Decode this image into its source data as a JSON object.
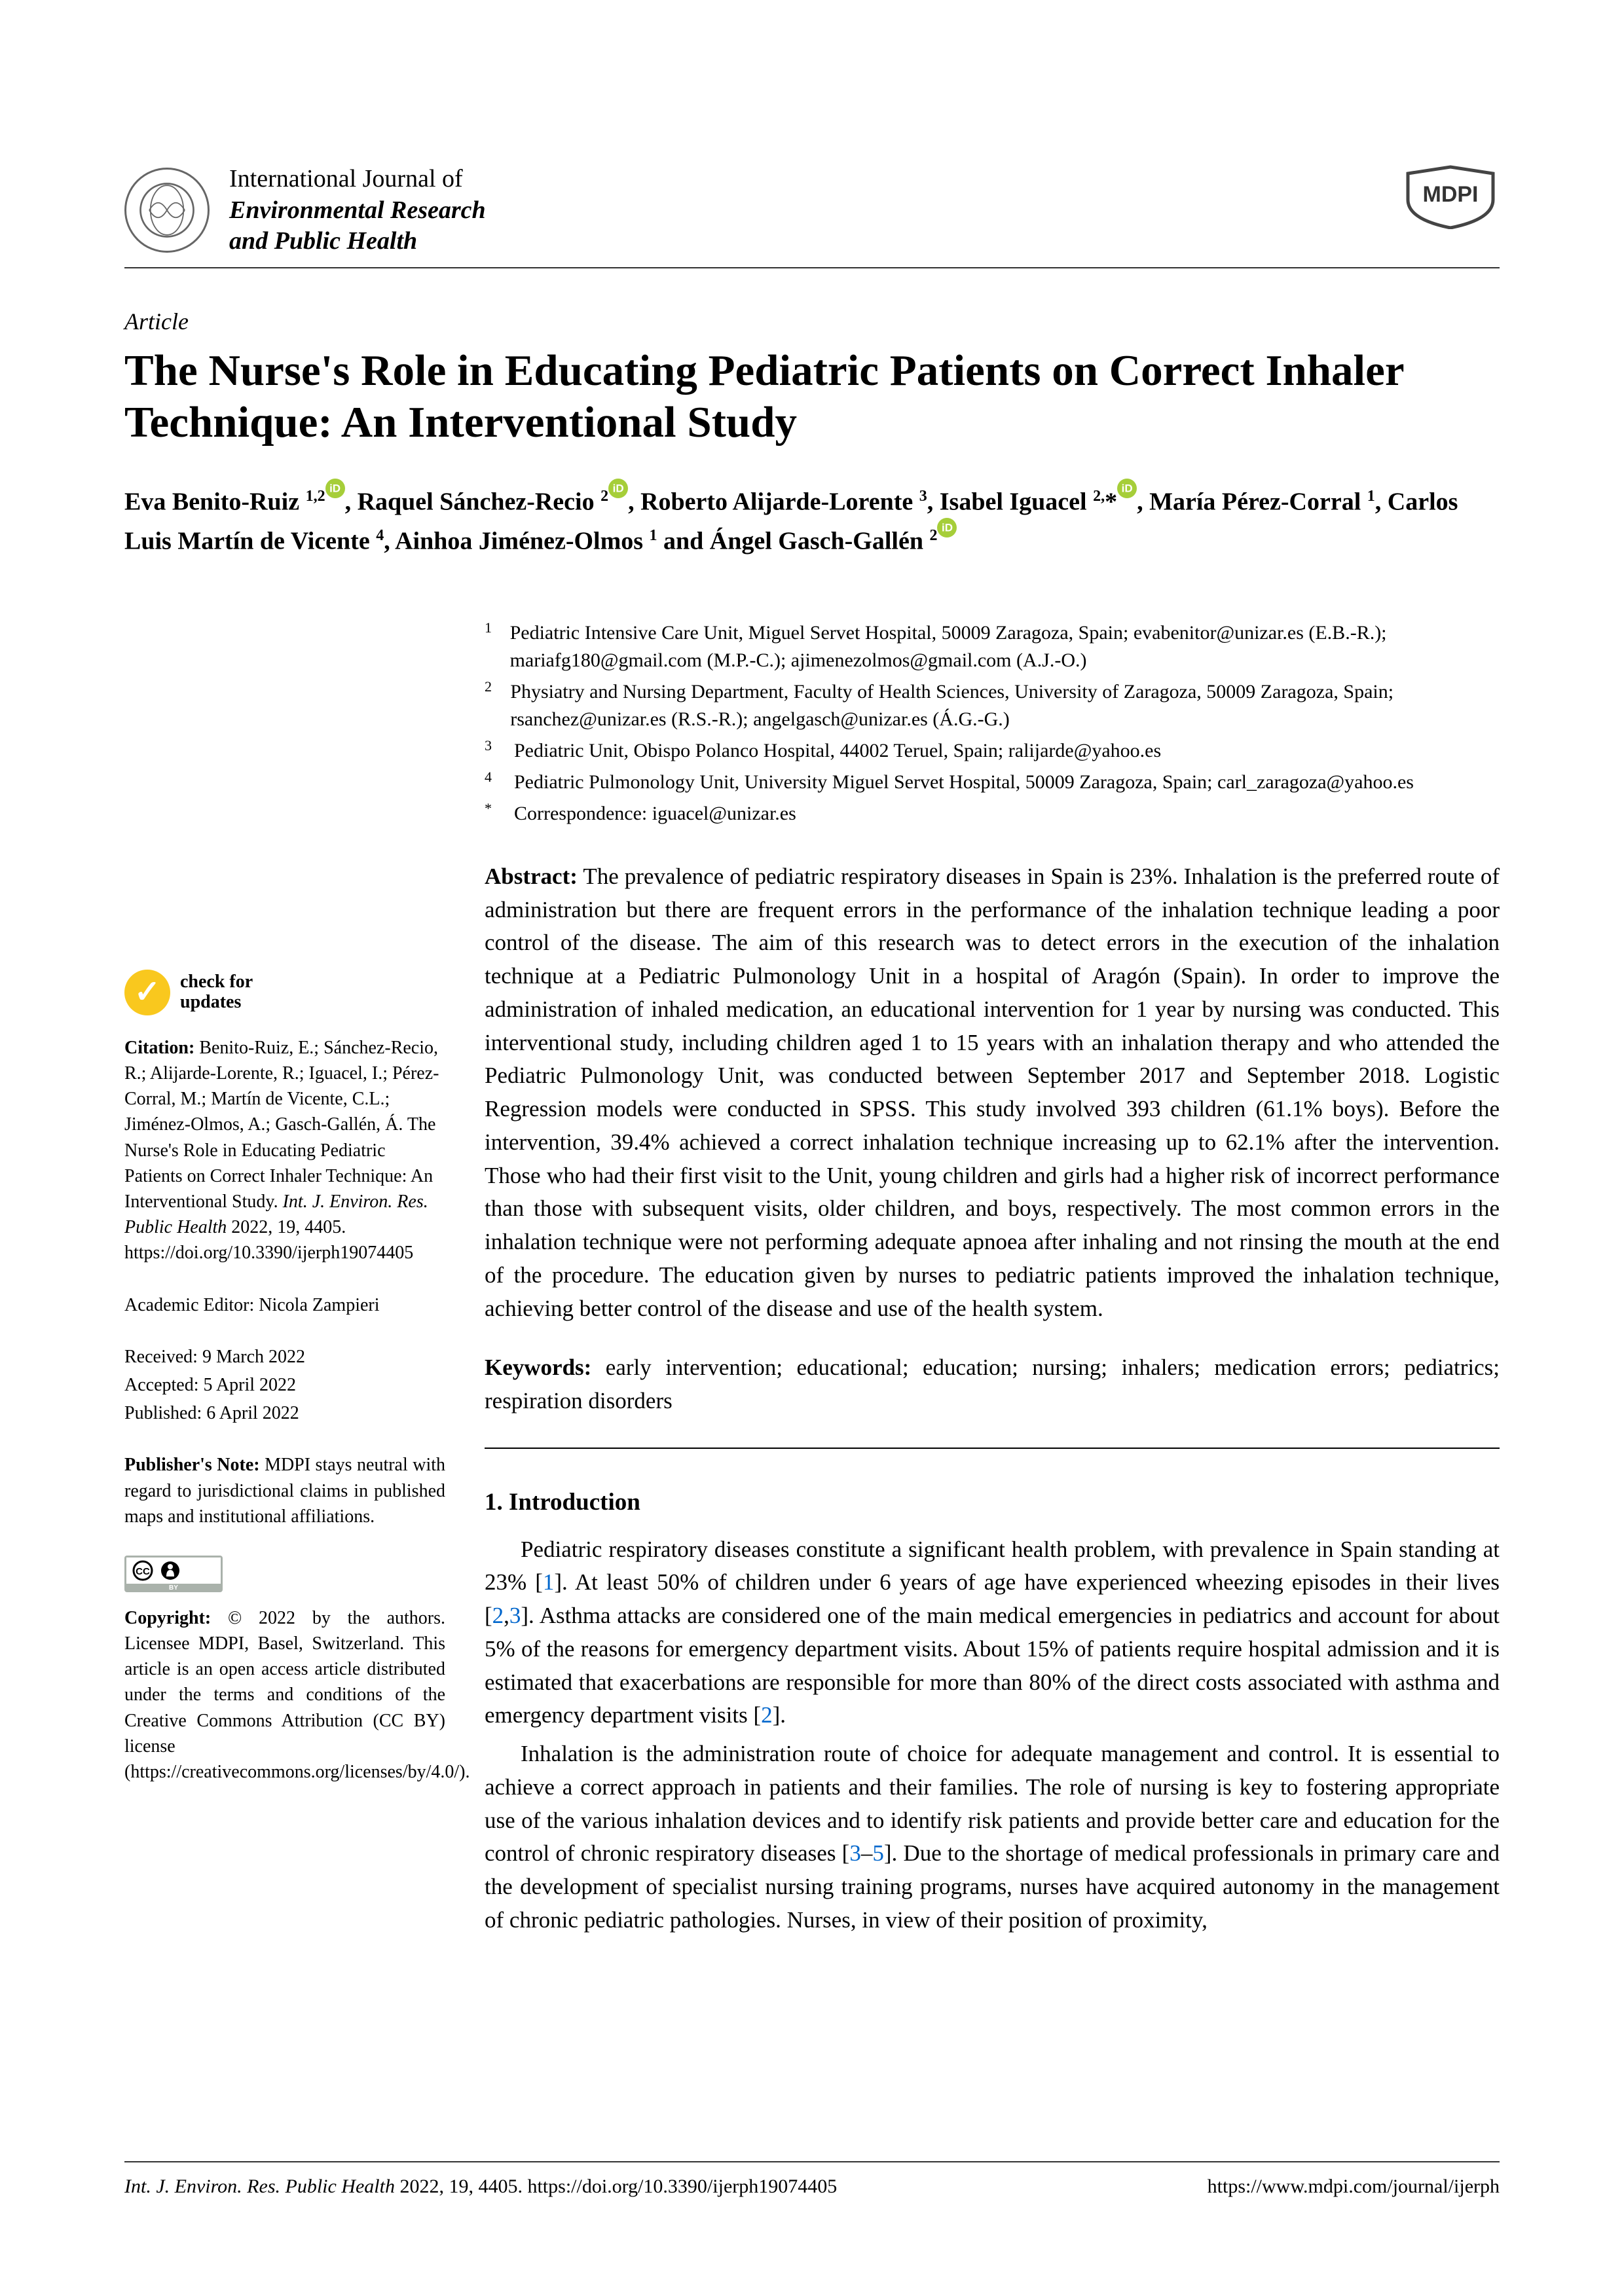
{
  "journal": {
    "line1": "International Journal of",
    "line2": "Environmental Research",
    "line3": "and Public Health"
  },
  "publisher_logo": "MDPI",
  "article_type": "Article",
  "title": "The Nurse's Role in Educating Pediatric Patients on Correct Inhaler Technique: An Interventional Study",
  "authors_html": "Eva Benito-Ruiz <sup>1,2</sup><span class='orcid'></span>, Raquel Sánchez-Recio <sup>2</sup><span class='orcid'></span>, Roberto Alijarde-Lorente <sup>3</sup>, Isabel Iguacel <sup>2,</sup>*<span class='orcid'></span>, María Pérez-Corral <sup>1</sup>, Carlos Luis Martín de Vicente <sup>4</sup>, Ainhoa Jiménez-Olmos <sup>1</sup> and Ángel Gasch-Gallén <sup>2</sup><span class='orcid'></span>",
  "affiliations": [
    {
      "num": "1",
      "text": "Pediatric Intensive Care Unit, Miguel Servet Hospital, 50009 Zaragoza, Spain; evabenitor@unizar.es (E.B.-R.); mariafg180@gmail.com (M.P.-C.); ajimenezolmos@gmail.com (A.J.-O.)"
    },
    {
      "num": "2",
      "text": "Physiatry and Nursing Department, Faculty of Health Sciences, University of Zaragoza, 50009 Zaragoza, Spain; rsanchez@unizar.es (R.S.-R.); angelgasch@unizar.es (Á.G.-G.)"
    },
    {
      "num": "3",
      "text": "Pediatric Unit, Obispo Polanco Hospital, 44002 Teruel, Spain; ralijarde@yahoo.es"
    },
    {
      "num": "4",
      "text": "Pediatric Pulmonology Unit, University Miguel Servet Hospital, 50009 Zaragoza, Spain; carl_zaragoza@yahoo.es"
    },
    {
      "num": "*",
      "text": "Correspondence: iguacel@unizar.es"
    }
  ],
  "abstract_label": "Abstract:",
  "abstract": "The prevalence of pediatric respiratory diseases in Spain is 23%. Inhalation is the preferred route of administration but there are frequent errors in the performance of the inhalation technique leading a poor control of the disease. The aim of this research was to detect errors in the execution of the inhalation technique at a Pediatric Pulmonology Unit in a hospital of Aragón (Spain). In order to improve the administration of inhaled medication, an educational intervention for 1 year by nursing was conducted. This interventional study, including children aged 1 to 15 years with an inhalation therapy and who attended the Pediatric Pulmonology Unit, was conducted between September 2017 and September 2018. Logistic Regression models were conducted in SPSS. This study involved 393 children (61.1% boys). Before the intervention, 39.4% achieved a correct inhalation technique increasing up to 62.1% after the intervention. Those who had their first visit to the Unit, young children and girls had a higher risk of incorrect performance than those with subsequent visits, older children, and boys, respectively. The most common errors in the inhalation technique were not performing adequate apnoea after inhaling and not rinsing the mouth at the end of the procedure. The education given by nurses to pediatric patients improved the inhalation technique, achieving better control of the disease and use of the health system.",
  "keywords_label": "Keywords:",
  "keywords": "early intervention; educational; education; nursing; inhalers; medication errors; pediatrics; respiration disorders",
  "section1_title": "1. Introduction",
  "para1_html": "Pediatric respiratory diseases constitute a significant health problem, with prevalence in Spain standing at 23% [<span class='ref-link'>1</span>]. At least 50% of children under 6 years of age have experienced wheezing episodes in their lives [<span class='ref-link'>2</span>,<span class='ref-link'>3</span>]. Asthma attacks are considered one of the main medical emergencies in pediatrics and account for about 5% of the reasons for emergency department visits. About 15% of patients require hospital admission and it is estimated that exacerbations are responsible for more than 80% of the direct costs associated with asthma and emergency department visits [<span class='ref-link'>2</span>].",
  "para2_html": "Inhalation is the administration route of choice for adequate management and control. It is essential to achieve a correct approach in patients and their families. The role of nursing is key to fostering appropriate use of the various inhalation devices and to identify risk patients and provide better care and education for the control of chronic respiratory diseases [<span class='ref-link'>3</span>–<span class='ref-link'>5</span>]. Due to the shortage of medical professionals in primary care and the development of specialist nursing training programs, nurses have acquired autonomy in the management of chronic pediatric pathologies. Nurses, in view of their position of proximity,",
  "sidebar": {
    "check_l1": "check for",
    "check_l2": "updates",
    "citation_label": "Citation:",
    "citation": "Benito-Ruiz, E.; Sánchez-Recio, R.; Alijarde-Lorente, R.; Iguacel, I.; Pérez-Corral, M.; Martín de Vicente, C.L.; Jiménez-Olmos, A.; Gasch-Gallén, Á. The Nurse's Role in Educating Pediatric Patients on Correct Inhaler Technique: An Interventional Study.",
    "citation_journal": "Int. J. Environ. Res. Public Health",
    "citation_tail": "2022, 19, 4405. https://doi.org/10.3390/ijerph19074405",
    "editor": "Academic Editor: Nicola Zampieri",
    "received": "Received: 9 March 2022",
    "accepted": "Accepted: 5 April 2022",
    "published": "Published: 6 April 2022",
    "pubnote_label": "Publisher's Note:",
    "pubnote": "MDPI stays neutral with regard to jurisdictional claims in published maps and institutional affiliations.",
    "copyright_label": "Copyright:",
    "copyright": "© 2022 by the authors. Licensee MDPI, Basel, Switzerland. This article is an open access article distributed under the terms and conditions of the Creative Commons Attribution (CC BY) license (https://creativecommons.org/licenses/by/4.0/)."
  },
  "footer": {
    "left_journal": "Int. J. Environ. Res. Public Health",
    "left_tail": "2022, 19, 4405. https://doi.org/10.3390/ijerph19074405",
    "right": "https://www.mdpi.com/journal/ijerph"
  },
  "colors": {
    "text": "#000000",
    "link": "#0066cc",
    "orcid": "#a6ce39",
    "check": "#f9c81e",
    "rule": "#333333"
  }
}
